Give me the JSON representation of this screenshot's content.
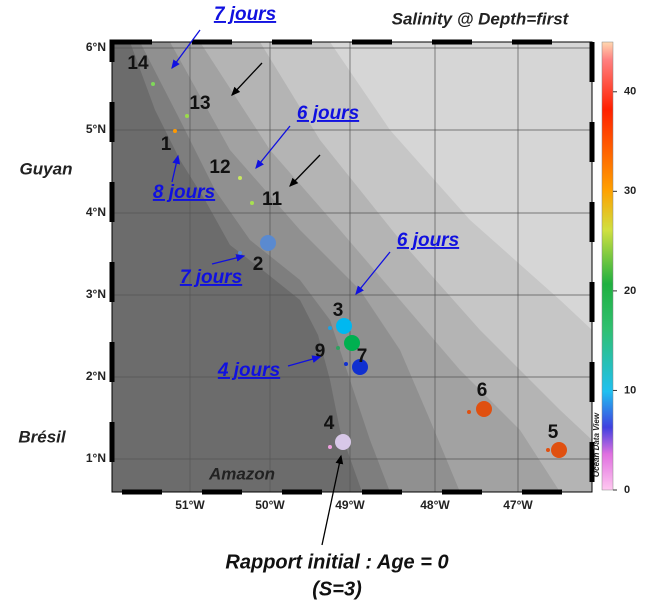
{
  "title": "Salinity @ Depth=first",
  "map": {
    "lat_labels": [
      "6°N",
      "5°N",
      "4°N",
      "3°N",
      "2°N",
      "1°N"
    ],
    "lon_labels": [
      "51°W",
      "50°W",
      "49°W",
      "48°W",
      "47°W"
    ],
    "places": [
      "Guyan",
      "Brésil",
      "Amazon"
    ]
  },
  "stations": [
    "14",
    "13",
    "1",
    "12",
    "11",
    "2",
    "3",
    "9",
    "7",
    "4",
    "6",
    "5"
  ],
  "annotations": [
    "7 jours",
    "6 jours",
    "8 jours",
    "6 jours",
    "7 jours",
    "4 jours"
  ],
  "colorbar": {
    "lim": [
      0,
      45
    ],
    "ticks": [
      0,
      10,
      20,
      30,
      40
    ],
    "credit": "Ocean Data View"
  },
  "caption": [
    "Rapport initial : Age = 0",
    "(S=3)"
  ]
}
